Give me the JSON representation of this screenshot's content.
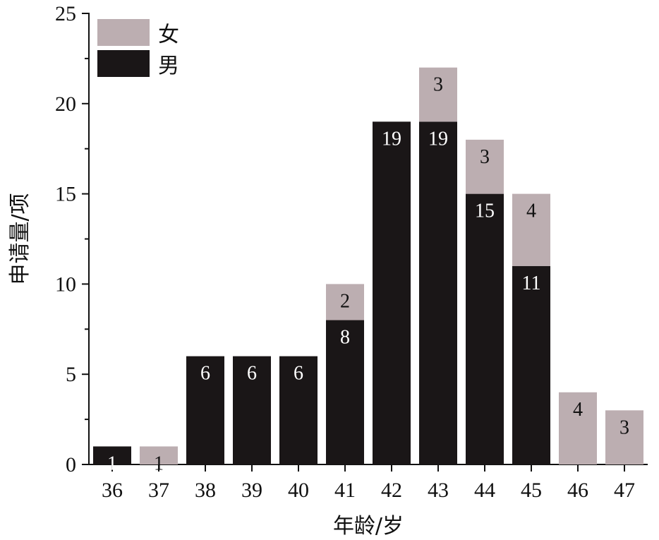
{
  "chart_data": {
    "type": "bar",
    "stacked": true,
    "categories": [
      "36",
      "37",
      "38",
      "39",
      "40",
      "41",
      "42",
      "43",
      "44",
      "45",
      "46",
      "47"
    ],
    "series": [
      {
        "name": "男",
        "color": "#1a1617",
        "label_color": "#ffffff",
        "values": [
          1,
          0,
          6,
          6,
          6,
          8,
          19,
          19,
          15,
          11,
          0,
          0
        ]
      },
      {
        "name": "女",
        "color": "#bcaeb1",
        "label_color": "#111111",
        "values": [
          0,
          1,
          0,
          0,
          0,
          2,
          0,
          3,
          3,
          4,
          4,
          3
        ]
      }
    ],
    "xlabel": "年龄/岁",
    "ylabel": "申请量/项",
    "ylim": [
      0,
      25
    ],
    "yticks": [
      "0",
      "5",
      "10",
      "15",
      "20",
      "25"
    ],
    "legend": {
      "placement": "top-left",
      "order": [
        "女",
        "男"
      ]
    },
    "grid": false
  }
}
